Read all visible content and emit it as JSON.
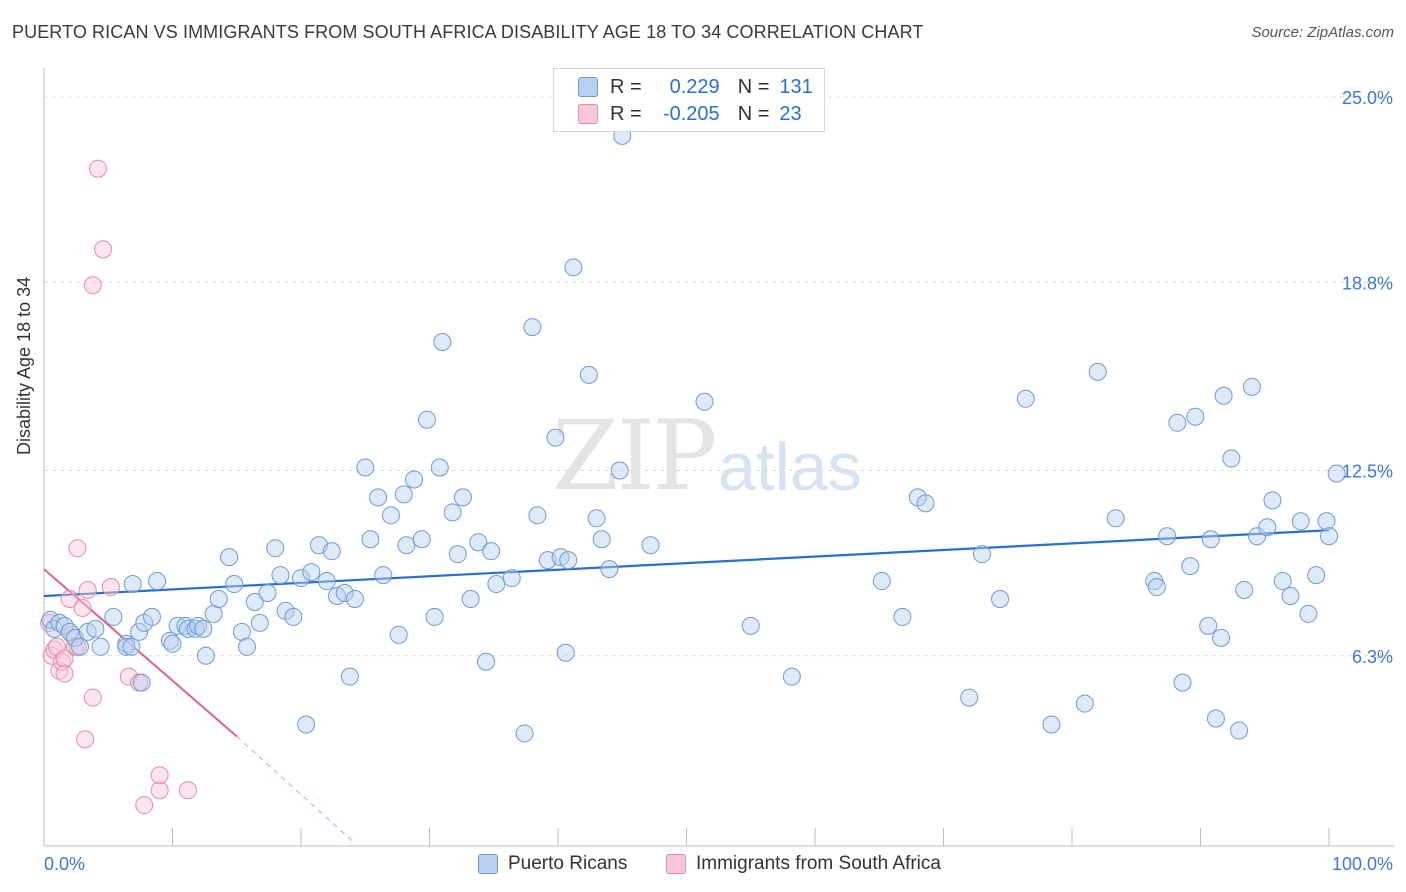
{
  "header": {
    "title": "PUERTO RICAN VS IMMIGRANTS FROM SOUTH AFRICA DISABILITY AGE 18 TO 34 CORRELATION CHART",
    "source": "Source: ZipAtlas.com"
  },
  "watermark": {
    "zip": "ZIP",
    "atlas": "atlas"
  },
  "legend": {
    "r_label": "R =",
    "n_label": "N =",
    "series": [
      {
        "name": "Puerto Ricans",
        "r": "0.229",
        "n": "131",
        "color": "#6d9ad8"
      },
      {
        "name": "Immigrants from South Africa",
        "r": "-0.205",
        "n": "23",
        "color": "#e88aa8"
      }
    ]
  },
  "chart_data": {
    "type": "scatter",
    "title": "PUERTO RICAN VS IMMIGRANTS FROM SOUTH AFRICA DISABILITY AGE 18 TO 34 CORRELATION CHART",
    "xlabel": "",
    "ylabel": "Disability Age 18 to 34",
    "xlim": [
      0,
      100
    ],
    "ylim": [
      0,
      25.0
    ],
    "x_tick_labels": [
      "0.0%",
      "100.0%"
    ],
    "y_ticks": [
      6.3,
      12.5,
      18.8,
      25.0
    ],
    "y_tick_labels": [
      "6.3%",
      "12.5%",
      "18.8%",
      "25.0%"
    ],
    "grid": true,
    "series": [
      {
        "name": "Puerto Ricans",
        "color": "#6d9ad8",
        "trend": {
          "x": [
            0,
            100
          ],
          "y": [
            8.3,
            10.5
          ]
        },
        "points": [
          [
            0.5,
            7.5
          ],
          [
            0.8,
            7.2
          ],
          [
            1.2,
            7.4
          ],
          [
            1.6,
            7.3
          ],
          [
            2.0,
            7.1
          ],
          [
            2.4,
            6.9
          ],
          [
            2.8,
            6.6
          ],
          [
            3.4,
            7.1
          ],
          [
            4.0,
            7.2
          ],
          [
            4.4,
            6.6
          ],
          [
            5.4,
            7.6
          ],
          [
            6.4,
            6.7
          ],
          [
            6.4,
            6.6
          ],
          [
            6.8,
            6.6
          ],
          [
            6.9,
            8.7
          ],
          [
            7.4,
            7.1
          ],
          [
            7.6,
            5.4
          ],
          [
            7.8,
            7.4
          ],
          [
            8.4,
            7.6
          ],
          [
            8.8,
            8.8
          ],
          [
            9.8,
            6.8
          ],
          [
            10.0,
            6.7
          ],
          [
            10.4,
            7.3
          ],
          [
            11.0,
            7.3
          ],
          [
            11.2,
            7.2
          ],
          [
            11.8,
            7.2
          ],
          [
            12.0,
            7.3
          ],
          [
            12.4,
            7.2
          ],
          [
            12.6,
            6.3
          ],
          [
            13.2,
            7.7
          ],
          [
            13.6,
            8.2
          ],
          [
            14.4,
            9.6
          ],
          [
            14.8,
            8.7
          ],
          [
            15.4,
            7.1
          ],
          [
            15.8,
            6.6
          ],
          [
            16.4,
            8.1
          ],
          [
            16.8,
            7.4
          ],
          [
            17.4,
            8.4
          ],
          [
            18.0,
            9.9
          ],
          [
            18.4,
            9.0
          ],
          [
            18.8,
            7.8
          ],
          [
            19.4,
            7.6
          ],
          [
            20.0,
            8.9
          ],
          [
            20.4,
            4.0
          ],
          [
            20.8,
            9.1
          ],
          [
            21.4,
            10.0
          ],
          [
            22.0,
            8.8
          ],
          [
            22.4,
            9.8
          ],
          [
            22.8,
            8.3
          ],
          [
            23.4,
            8.4
          ],
          [
            23.8,
            5.6
          ],
          [
            24.2,
            8.2
          ],
          [
            25.0,
            12.6
          ],
          [
            25.4,
            10.2
          ],
          [
            26.0,
            11.6
          ],
          [
            26.4,
            9.0
          ],
          [
            27.0,
            11.0
          ],
          [
            27.6,
            7.0
          ],
          [
            28.0,
            11.7
          ],
          [
            28.2,
            10.0
          ],
          [
            28.8,
            12.2
          ],
          [
            29.4,
            10.2
          ],
          [
            29.8,
            14.2
          ],
          [
            30.4,
            7.6
          ],
          [
            30.8,
            12.6
          ],
          [
            31.0,
            16.8
          ],
          [
            31.8,
            11.1
          ],
          [
            32.2,
            9.7
          ],
          [
            32.6,
            11.6
          ],
          [
            33.2,
            8.2
          ],
          [
            33.8,
            10.1
          ],
          [
            34.4,
            6.1
          ],
          [
            34.8,
            9.8
          ],
          [
            35.2,
            8.7
          ],
          [
            36.4,
            8.9
          ],
          [
            37.4,
            3.7
          ],
          [
            38.0,
            17.3
          ],
          [
            38.4,
            11.0
          ],
          [
            39.2,
            9.5
          ],
          [
            39.8,
            13.6
          ],
          [
            40.2,
            9.6
          ],
          [
            40.6,
            6.4
          ],
          [
            40.8,
            9.5
          ],
          [
            41.2,
            19.3
          ],
          [
            42.4,
            15.7
          ],
          [
            43.0,
            10.9
          ],
          [
            43.4,
            10.2
          ],
          [
            44.0,
            9.2
          ],
          [
            44.8,
            12.5
          ],
          [
            45.0,
            23.7
          ],
          [
            47.2,
            10.0
          ],
          [
            51.4,
            14.8
          ],
          [
            55.0,
            7.3
          ],
          [
            58.2,
            5.6
          ],
          [
            65.2,
            8.8
          ],
          [
            66.8,
            7.6
          ],
          [
            68.0,
            11.6
          ],
          [
            68.6,
            11.4
          ],
          [
            72.0,
            4.9
          ],
          [
            73.0,
            9.7
          ],
          [
            74.4,
            8.2
          ],
          [
            76.4,
            14.9
          ],
          [
            78.4,
            4.0
          ],
          [
            81.0,
            4.7
          ],
          [
            82.0,
            15.8
          ],
          [
            83.4,
            10.9
          ],
          [
            86.4,
            8.8
          ],
          [
            86.6,
            8.6
          ],
          [
            87.4,
            10.3
          ],
          [
            88.2,
            14.1
          ],
          [
            88.6,
            5.4
          ],
          [
            89.2,
            9.3
          ],
          [
            89.6,
            14.3
          ],
          [
            90.6,
            7.3
          ],
          [
            90.8,
            10.2
          ],
          [
            91.2,
            4.2
          ],
          [
            91.6,
            6.9
          ],
          [
            91.8,
            15.0
          ],
          [
            92.4,
            12.9
          ],
          [
            93.0,
            3.8
          ],
          [
            93.4,
            8.5
          ],
          [
            94.0,
            15.3
          ],
          [
            94.4,
            10.3
          ],
          [
            95.2,
            10.6
          ],
          [
            95.6,
            11.5
          ],
          [
            96.4,
            8.8
          ],
          [
            97.0,
            8.3
          ],
          [
            97.8,
            10.8
          ],
          [
            98.4,
            7.7
          ],
          [
            99.0,
            9.0
          ],
          [
            99.8,
            10.8
          ],
          [
            100.0,
            10.3
          ],
          [
            100.6,
            12.4
          ]
        ]
      },
      {
        "name": "Immigrants from South Africa",
        "color": "#e88aa8",
        "trend": {
          "x": [
            0,
            15
          ],
          "y": [
            9.2,
            3.6
          ]
        },
        "trend_dashed": {
          "x": [
            15,
            24
          ],
          "y": [
            3.6,
            0.1
          ]
        },
        "points": [
          [
            0.4,
            7.4
          ],
          [
            0.6,
            6.3
          ],
          [
            0.8,
            6.5
          ],
          [
            1.0,
            6.6
          ],
          [
            1.2,
            5.8
          ],
          [
            1.4,
            6.1
          ],
          [
            1.6,
            6.2
          ],
          [
            1.6,
            5.7
          ],
          [
            2.0,
            8.2
          ],
          [
            2.2,
            7.0
          ],
          [
            2.4,
            6.6
          ],
          [
            2.6,
            6.6
          ],
          [
            2.6,
            9.9
          ],
          [
            3.0,
            7.9
          ],
          [
            3.2,
            3.5
          ],
          [
            3.4,
            8.5
          ],
          [
            3.8,
            18.7
          ],
          [
            3.8,
            4.9
          ],
          [
            4.2,
            22.6
          ],
          [
            4.6,
            19.9
          ],
          [
            5.2,
            8.6
          ],
          [
            6.6,
            5.6
          ],
          [
            7.4,
            5.4
          ],
          [
            7.8,
            1.3
          ],
          [
            9.0,
            1.8
          ],
          [
            9.0,
            2.3
          ],
          [
            11.2,
            1.8
          ]
        ]
      }
    ]
  }
}
